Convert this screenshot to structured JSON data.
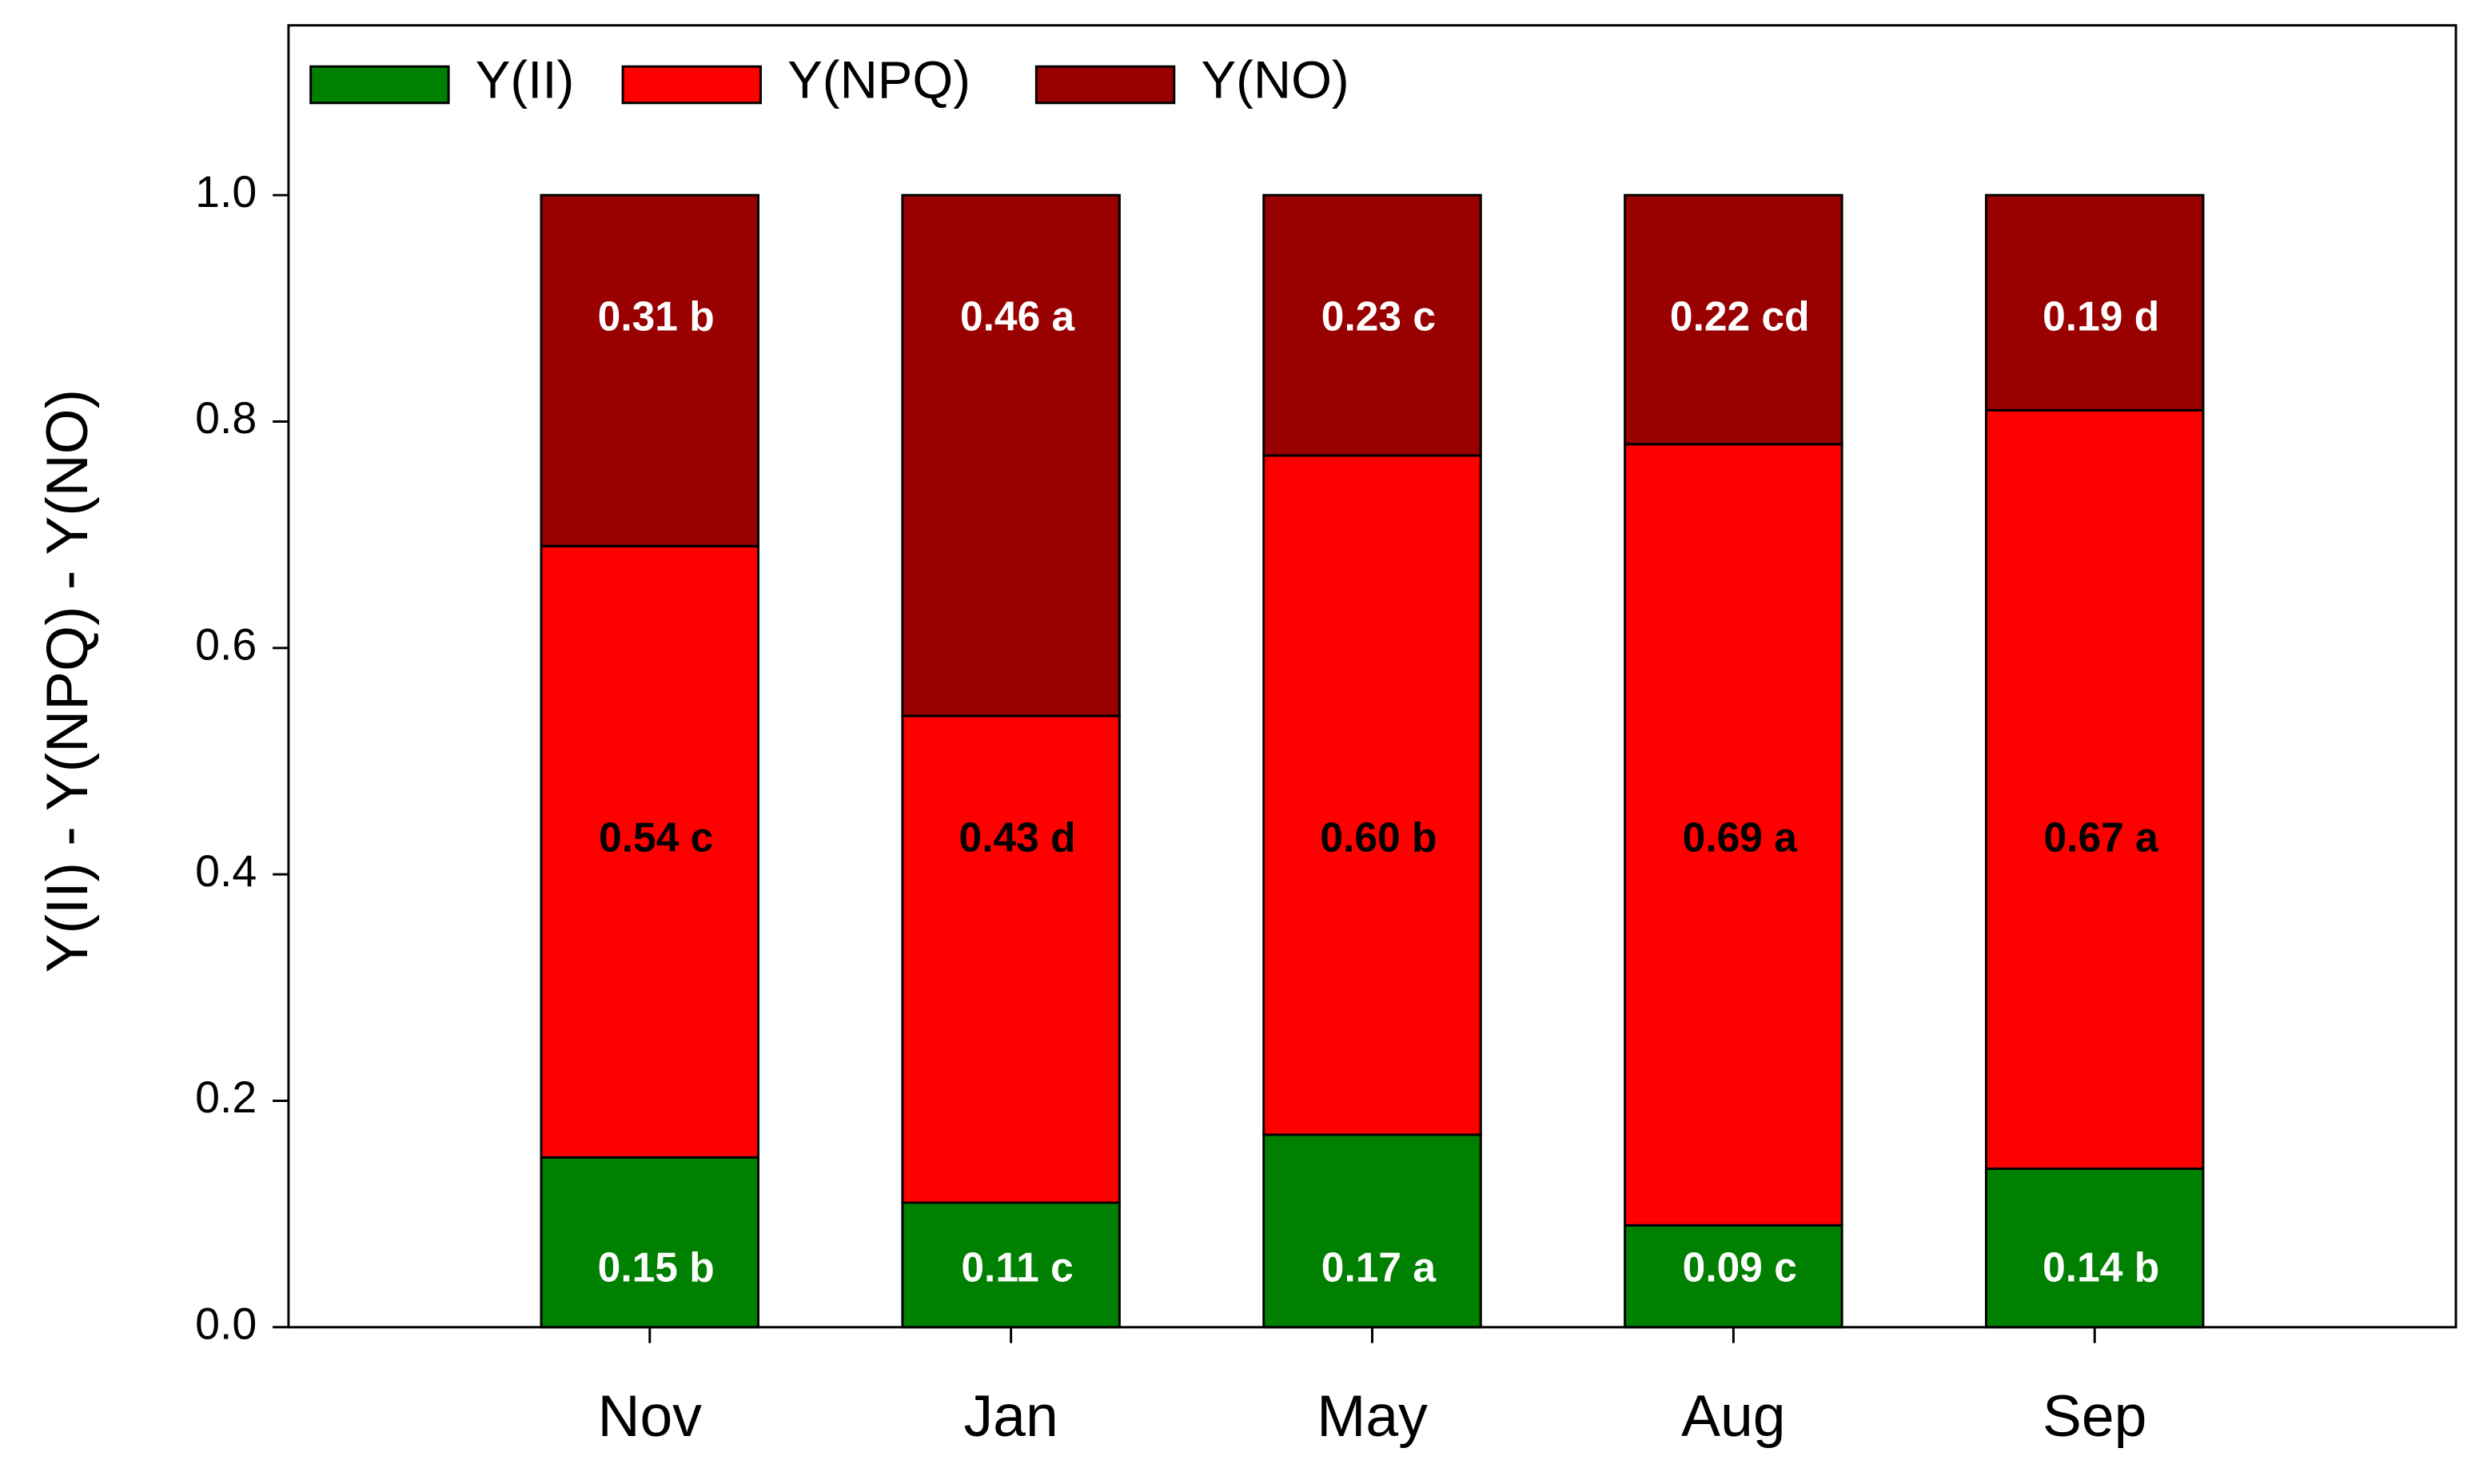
{
  "chart_data": {
    "type": "stacked_bar",
    "ylabel": "Y(II) - Y(NPQ) - Y(NO)",
    "categories": [
      "Nov",
      "Jan",
      "May",
      "Aug",
      "Sep"
    ],
    "series": [
      {
        "name": "Y(II)",
        "color": "#008000",
        "values": [
          0.15,
          0.11,
          0.17,
          0.09,
          0.14
        ],
        "value_labels": [
          "0.15 b",
          "0.11 c",
          "0.17 a",
          "0.09 c",
          "0.14 b"
        ]
      },
      {
        "name": "Y(NPQ)",
        "color": "#ff0000",
        "values": [
          0.54,
          0.43,
          0.6,
          0.69,
          0.67
        ],
        "value_labels": [
          "0.54 c",
          "0.43 d",
          "0.60 b",
          "0.69 a",
          "0.67 a"
        ]
      },
      {
        "name": "Y(NO)",
        "color": "#990000",
        "values": [
          0.31,
          0.46,
          0.23,
          0.22,
          0.19
        ],
        "value_labels": [
          "0.31 b",
          "0.46 a",
          "0.23 c",
          "0.22 cd",
          "0.19 d"
        ]
      }
    ],
    "ylim": [
      0,
      1.15
    ],
    "yticks": [
      {
        "value": 0,
        "label": "0.0"
      },
      0.2,
      0.4,
      0.6,
      0.8,
      {
        "value": 1,
        "label": "1.0"
      }
    ],
    "legend": "upper left"
  }
}
